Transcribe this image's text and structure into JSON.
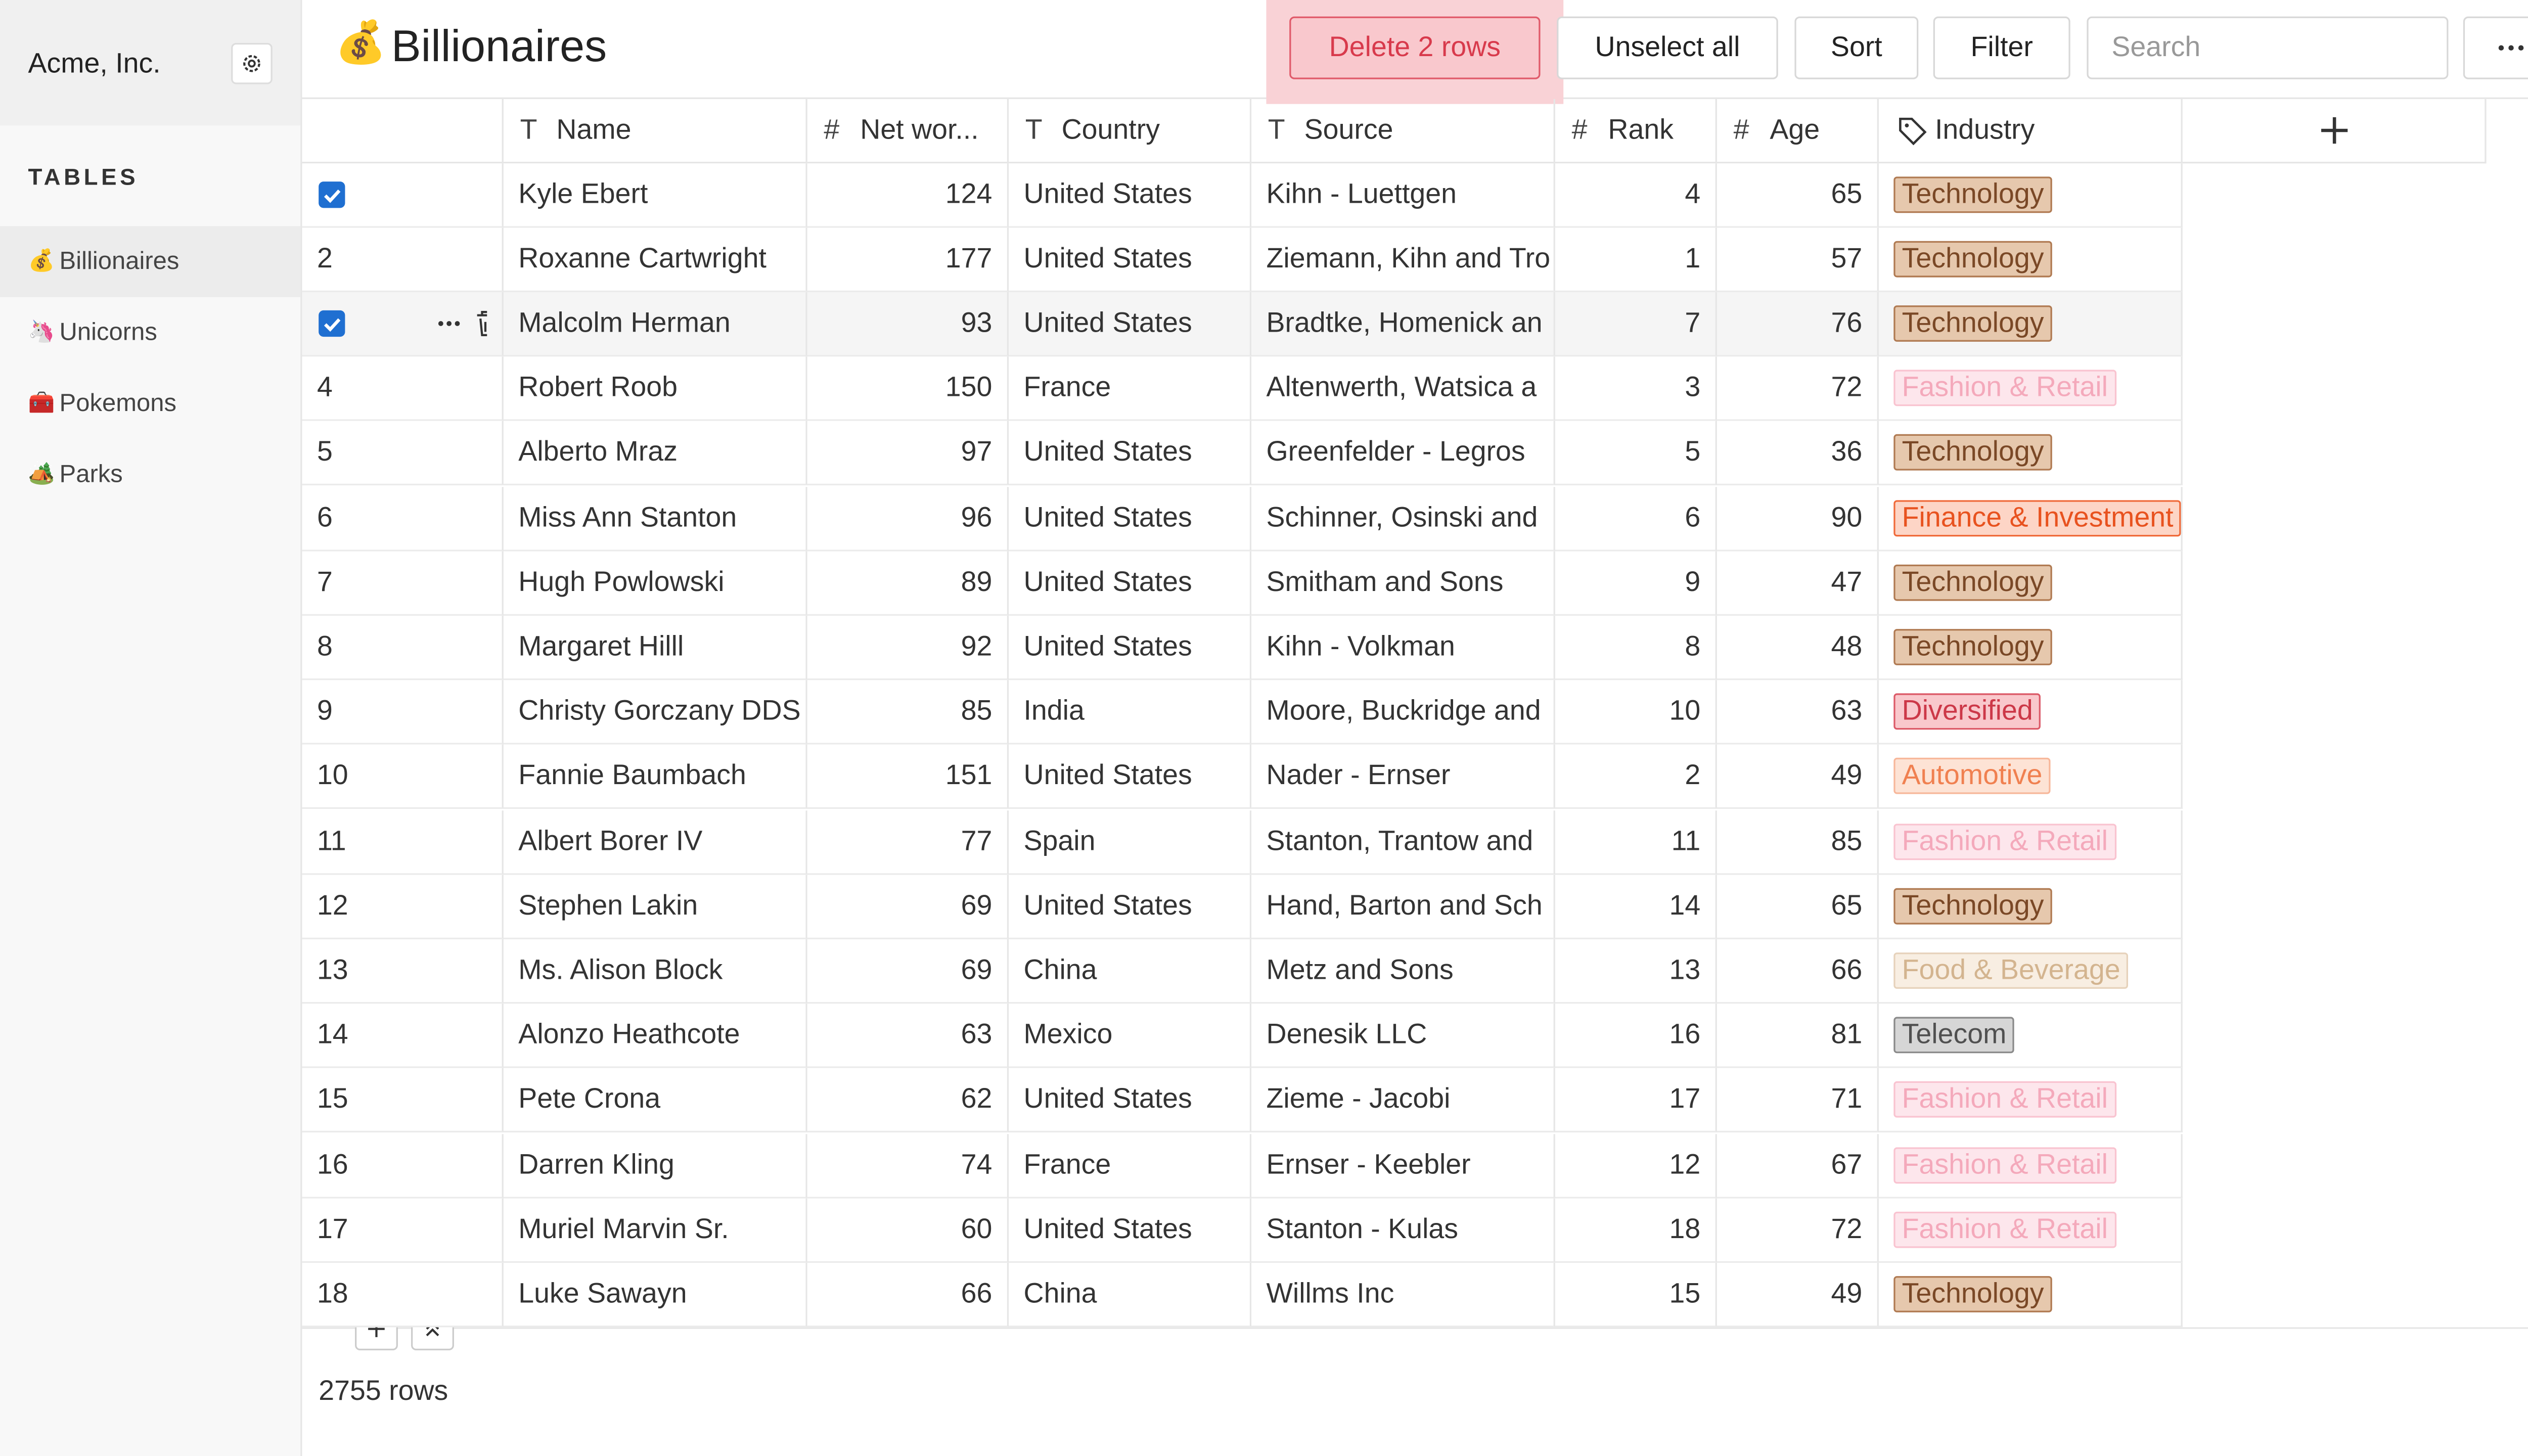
{
  "sidebar": {
    "workspace": "Acme, Inc.",
    "section": "TABLES",
    "tables": [
      {
        "icon": "💰",
        "name": "Billionaires"
      },
      {
        "icon": "🦄",
        "name": "Unicorns"
      },
      {
        "icon": "🧰",
        "name": "Pokemons"
      },
      {
        "icon": "🏕️",
        "name": "Parks"
      }
    ]
  },
  "header": {
    "icon": "💰",
    "title": "Billionaires",
    "buttons": [
      "Delete 2 rows",
      "Unselect all",
      "Sort",
      "Filter"
    ],
    "search_placeholder": "Search"
  },
  "table": {
    "columns": [
      {
        "icon": "T",
        "name": "Name"
      },
      {
        "icon": "#",
        "name": "Net wor..."
      },
      {
        "icon": "T",
        "name": "Country"
      },
      {
        "icon": "T",
        "name": "Source"
      },
      {
        "icon": "#",
        "name": "Rank"
      },
      {
        "icon": "#",
        "name": "Age"
      },
      {
        "name": "Industry"
      }
    ],
    "tag_styles": {
      "Technology": [
        "#e6c8ad",
        "#b07a52",
        "#7a4826"
      ],
      "Fashion & Retail": [
        "#fde6ec",
        "#f9c3d0",
        "#f4a9bb"
      ],
      "Finance & Investment": [
        "#fdd5c6",
        "#f06a3a",
        "#e8521f"
      ],
      "Diversified": [
        "#f9c8cc",
        "#dc5a68",
        "#cc3848"
      ],
      "Automotive": [
        "#fde3d5",
        "#f7b79a",
        "#f08050"
      ],
      "Food & Beverage": [
        "#f8eee2",
        "#e6d2bb",
        "#d3b48f"
      ],
      "Telecom": [
        "#d6d6d6",
        "#8a8a8a",
        "#505050"
      ]
    },
    "rows": [
      {
        "selected": true,
        "cells": [
          "Kyle Ebert",
          124,
          "United States",
          "Kihn - Luettgen",
          4,
          65,
          "Technology"
        ]
      },
      {
        "num": 2,
        "cells": [
          "Roxanne Cartwright",
          177,
          "United States",
          "Ziemann, Kihn and Tro",
          1,
          57,
          "Technology"
        ]
      },
      {
        "selected": true,
        "cells": [
          "Malcolm Herman",
          93,
          "United States",
          "Bradtke, Homenick an",
          7,
          76,
          "Technology"
        ]
      },
      {
        "num": 4,
        "cells": [
          "Robert Roob",
          150,
          "France",
          "Altenwerth, Watsica a",
          3,
          72,
          "Fashion & Retail"
        ]
      },
      {
        "num": 5,
        "cells": [
          "Alberto Mraz",
          97,
          "United States",
          "Greenfelder - Legros",
          5,
          36,
          "Technology"
        ]
      },
      {
        "num": 6,
        "cells": [
          "Miss Ann Stanton",
          96,
          "United States",
          "Schinner, Osinski and",
          6,
          90,
          "Finance & Investment"
        ]
      },
      {
        "num": 7,
        "cells": [
          "Hugh Powlowski",
          89,
          "United States",
          "Smitham and Sons",
          9,
          47,
          "Technology"
        ]
      },
      {
        "num": 8,
        "cells": [
          "Margaret Hilll",
          92,
          "United States",
          "Kihn - Volkman",
          8,
          48,
          "Technology"
        ]
      },
      {
        "num": 9,
        "cells": [
          "Christy Gorczany DDS",
          85,
          "India",
          "Moore, Buckridge and",
          10,
          63,
          "Diversified"
        ]
      },
      {
        "num": 10,
        "cells": [
          "Fannie Baumbach",
          151,
          "United States",
          "Nader - Ernser",
          2,
          49,
          "Automotive"
        ]
      },
      {
        "num": 11,
        "cells": [
          "Albert Borer IV",
          77,
          "Spain",
          "Stanton, Trantow and",
          11,
          85,
          "Fashion & Retail"
        ]
      },
      {
        "num": 12,
        "cells": [
          "Stephen Lakin",
          69,
          "United States",
          "Hand, Barton and Sch",
          14,
          65,
          "Technology"
        ]
      },
      {
        "num": 13,
        "cells": [
          "Ms. Alison Block",
          69,
          "China",
          "Metz and Sons",
          13,
          66,
          "Food & Beverage"
        ]
      },
      {
        "num": 14,
        "cells": [
          "Alonzo Heathcote",
          63,
          "Mexico",
          "Denesik LLC",
          16,
          81,
          "Telecom"
        ]
      },
      {
        "num": 15,
        "cells": [
          "Pete Crona",
          62,
          "United States",
          "Zieme - Jacobi",
          17,
          71,
          "Fashion & Retail"
        ]
      },
      {
        "num": 16,
        "cells": [
          "Darren Kling",
          74,
          "France",
          "Ernser - Keebler",
          12,
          67,
          "Fashion & Retail"
        ]
      },
      {
        "num": 17,
        "cells": [
          "Muriel Marvin Sr.",
          60,
          "United States",
          "Stanton - Kulas",
          18,
          72,
          "Fashion & Retail"
        ]
      },
      {
        "num": 18,
        "cells": [
          "Luke Sawayn",
          66,
          "China",
          "Willms Inc",
          15,
          49,
          "Technology"
        ]
      }
    ]
  },
  "footer": {
    "row_count": "2755 rows"
  }
}
